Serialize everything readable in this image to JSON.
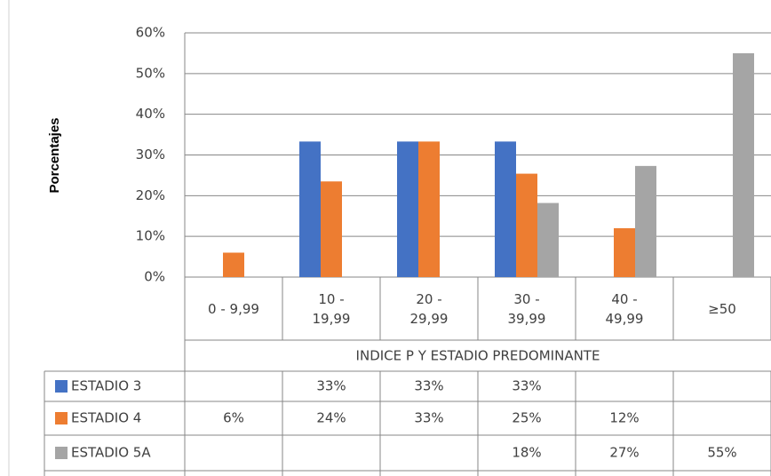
{
  "chart_data": {
    "type": "bar",
    "y_label": "Porcentajes",
    "x_label": "INDICE P Y ESTADIO PREDOMINANTE",
    "categories": [
      "0 - 9,99",
      "10 - 19,99",
      "20 - 29,99",
      "30 - 39,99",
      "40 - 49,99",
      "≥50"
    ],
    "series": [
      {
        "name": "ESTADIO 3",
        "color": "#4472c4",
        "values": [
          null,
          33.3,
          33.3,
          33.3,
          null,
          null
        ],
        "value_labels": [
          null,
          "33%",
          "33%",
          "33%",
          null,
          null
        ]
      },
      {
        "name": "ESTADIO 4",
        "color": "#ed7d31",
        "values": [
          6,
          23.5,
          33.3,
          25.4,
          12,
          null
        ],
        "value_labels": [
          "6%",
          "24%",
          "33%",
          "25%",
          "12%",
          null
        ]
      },
      {
        "name": "ESTADIO 5A",
        "color": "#a5a5a5",
        "values": [
          null,
          null,
          null,
          18.2,
          27.3,
          55
        ],
        "value_labels": [
          null,
          null,
          null,
          "18%",
          "27%",
          "55%"
        ]
      }
    ],
    "ylim": [
      0,
      60
    ],
    "yticks": [
      {
        "value": 0,
        "label": "0%"
      },
      {
        "value": 10,
        "label": "10%"
      },
      {
        "value": 20,
        "label": "20%"
      },
      {
        "value": 30,
        "label": "30%"
      },
      {
        "value": 40,
        "label": "40%"
      },
      {
        "value": 50,
        "label": "50%"
      },
      {
        "value": 60,
        "label": "60%"
      }
    ],
    "grid": true
  }
}
